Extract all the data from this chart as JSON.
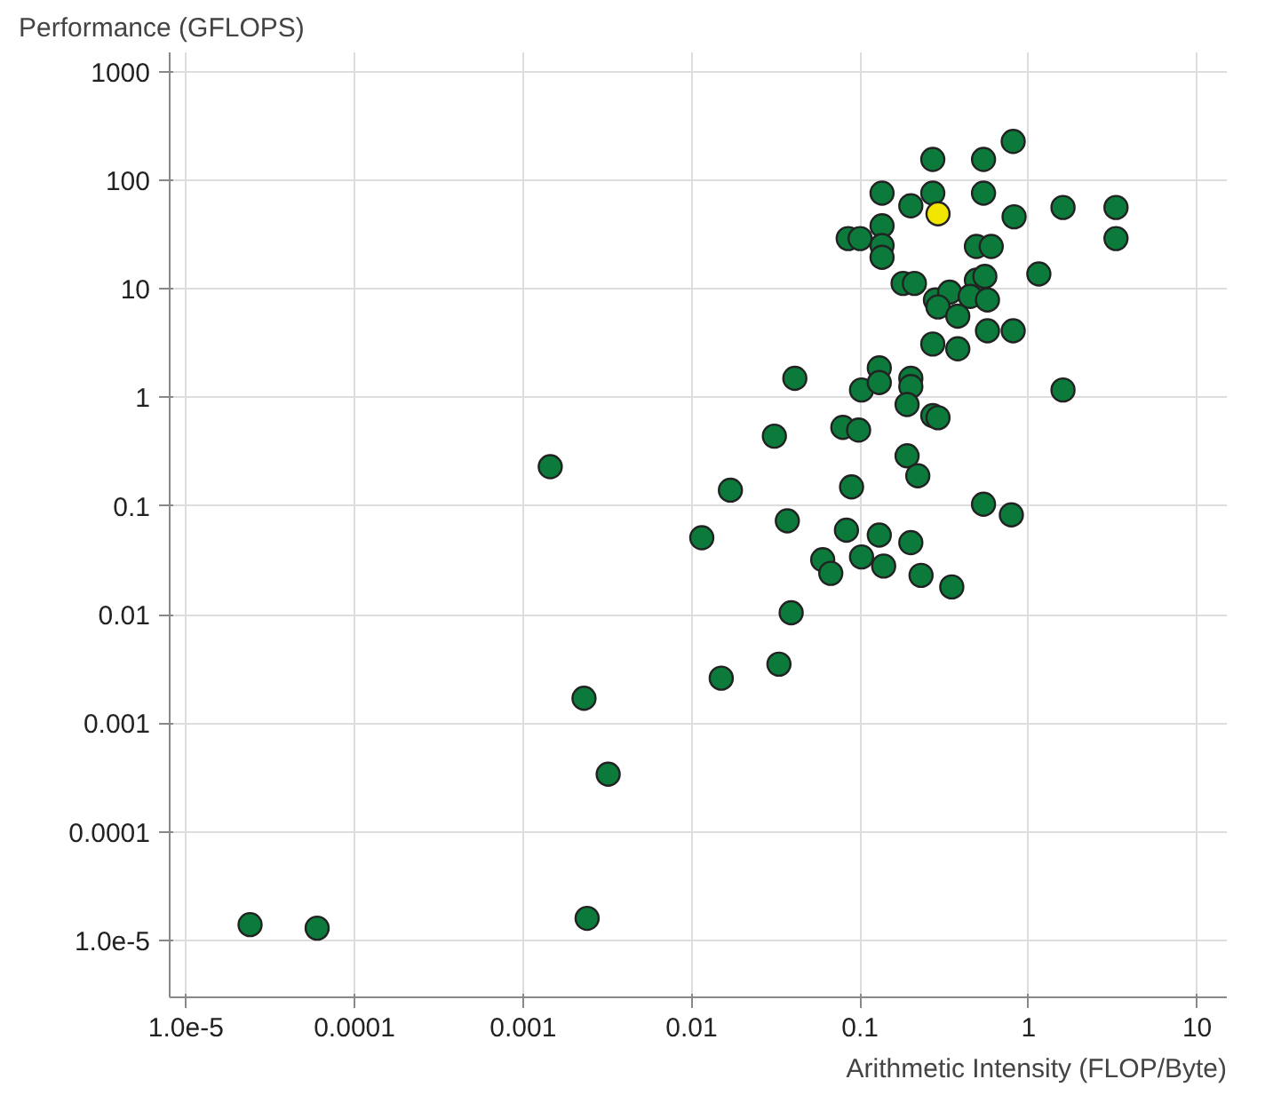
{
  "chart_data": {
    "type": "scatter",
    "xlabel": "Arithmetic Intensity (FLOP/Byte)",
    "ylabel": "Performance (GFLOPS)",
    "log": "xy",
    "grid": true,
    "marker": "circle",
    "xlim": [
      8e-06,
      15
    ],
    "ylim": [
      3e-06,
      1500
    ],
    "xticks": [
      {
        "value": 1e-05,
        "label": "1.0e-5"
      },
      0.0001,
      0.001,
      0.01,
      0.1,
      1,
      10
    ],
    "yticks": [
      {
        "value": 1e-05,
        "label": "1.0e-5"
      },
      0.0001,
      0.001,
      0.01,
      0.1,
      1,
      10,
      100,
      1000
    ],
    "series": [
      {
        "color": "#0b7a3a",
        "x": [
          2.4e-05,
          6e-05,
          0.00145,
          0.0023,
          0.0032,
          0.0024,
          0.017,
          0.0115,
          0.015,
          0.033,
          0.037,
          0.039,
          0.031,
          0.041,
          0.102,
          0.13,
          0.13,
          0.2,
          0.2,
          0.19,
          0.079,
          0.098,
          0.27,
          0.29,
          0.19,
          0.22,
          0.089,
          0.54,
          0.79,
          0.083,
          0.13,
          0.2,
          0.06,
          0.067,
          0.102,
          0.138,
          0.23,
          0.35,
          1.6,
          0.81,
          0.27,
          0.54,
          0.135,
          0.27,
          0.54,
          0.2,
          0.82,
          1.6,
          3.3,
          3.3,
          0.135,
          0.085,
          0.1,
          0.135,
          0.135,
          0.49,
          0.6,
          1.15,
          0.18,
          0.21,
          0.49,
          0.55,
          0.28,
          0.34,
          0.45,
          0.57,
          0.29,
          0.38,
          0.57,
          0.81,
          0.27,
          0.38
        ],
        "values": [
          1.4e-05,
          1.3e-05,
          0.23,
          0.0017,
          0.00034,
          1.6e-05,
          0.14,
          0.051,
          0.0026,
          0.0035,
          0.073,
          0.0104,
          0.44,
          1.5,
          1.17,
          1.87,
          1.37,
          1.5,
          1.26,
          0.86,
          0.53,
          0.5,
          0.68,
          0.65,
          0.29,
          0.19,
          0.15,
          0.104,
          0.083,
          0.06,
          0.054,
          0.046,
          0.032,
          0.024,
          0.034,
          0.028,
          0.023,
          0.018,
          1.17,
          227,
          155,
          155,
          76,
          76,
          76,
          58,
          46,
          56,
          56,
          29,
          38,
          29,
          29,
          25,
          19.5,
          24.5,
          24.5,
          13.7,
          11.2,
          11.2,
          12,
          13,
          7.9,
          9.3,
          8.5,
          7.9,
          6.8,
          5.6,
          4.1,
          4.1,
          3.1,
          2.8
        ]
      },
      {
        "color": "#f2e600",
        "x": [
          0.29
        ],
        "values": [
          49
        ]
      }
    ]
  }
}
